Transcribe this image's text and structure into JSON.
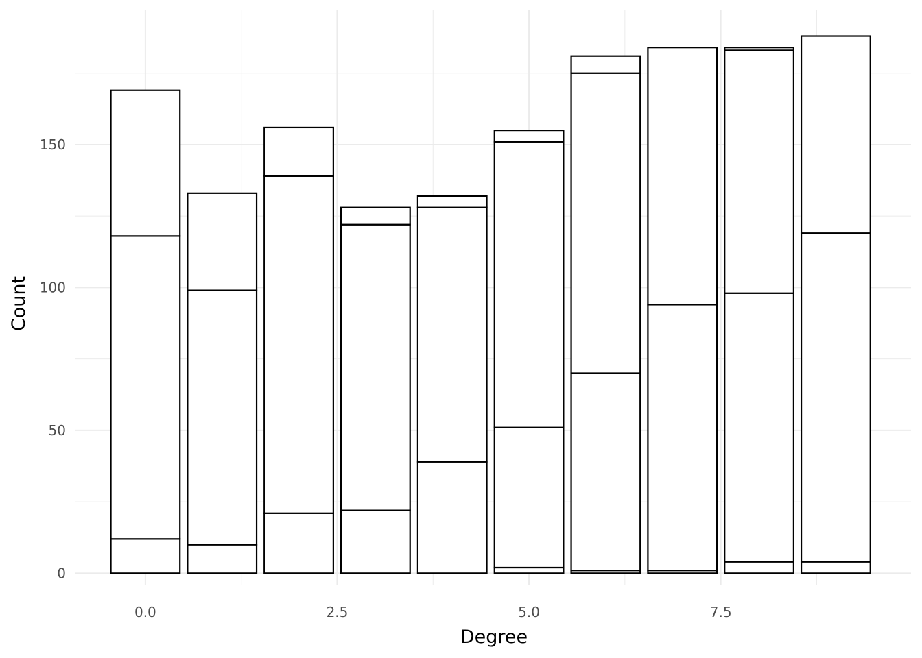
{
  "chart_data": {
    "type": "bar",
    "stacked": true,
    "title": "",
    "xlabel": "Degree",
    "ylabel": "Count",
    "x_ticks": [
      "0.0",
      "2.5",
      "5.0",
      "7.5"
    ],
    "y_ticks": [
      "0",
      "50",
      "100",
      "150"
    ],
    "xlim": [
      -0.92,
      9.98
    ],
    "ylim": [
      -4,
      197
    ],
    "grid": "on",
    "legend": "none",
    "bar_fill": "#ffffff",
    "bar_outline": "#000000",
    "categories": [
      0,
      1,
      2,
      3,
      4,
      5,
      6,
      7,
      8,
      9
    ],
    "stack_boundaries": [
      [
        12,
        118,
        169
      ],
      [
        10,
        99,
        133
      ],
      [
        21,
        139,
        156
      ],
      [
        22,
        122,
        128
      ],
      [
        39,
        128,
        132
      ],
      [
        2,
        51,
        151,
        155
      ],
      [
        1,
        70,
        175,
        181
      ],
      [
        1,
        94,
        184
      ],
      [
        4,
        98,
        183,
        184
      ],
      [
        4,
        119,
        188
      ]
    ],
    "totals": [
      169,
      133,
      156,
      128,
      132,
      155,
      181,
      184,
      184,
      188
    ]
  }
}
